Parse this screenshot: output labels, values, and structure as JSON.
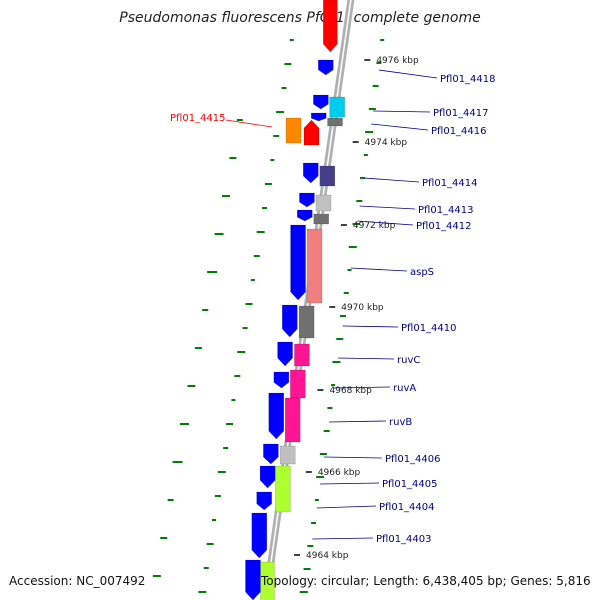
{
  "title": "Pseudomonas fluorescens PfO-1, complete genome",
  "footer": {
    "accession": "Accession: NC_007492",
    "topology": "Topology: circular; Length: 6,438,405 bp; Genes: 5,816"
  },
  "colors": {
    "backbone": "#a0a0a0",
    "forward_gene": "#0000ff",
    "label_text": "#00008b",
    "highlight_label": "#ff0000",
    "gc_marks": "#008000",
    "tick_marks": "#000000"
  },
  "scale_ticks": [
    "4976 kbp",
    "4974 kbp",
    "4972 kbp",
    "4970 kbp",
    "4968 kbp",
    "4966 kbp",
    "4964 kbp"
  ],
  "genes": [
    {
      "label": "Pfl01_4418",
      "color": "#0000ff"
    },
    {
      "label": "Pfl01_4417",
      "color": "#00ccee"
    },
    {
      "label": "Pfl01_4416",
      "color": "#707070"
    },
    {
      "label": "Pfl01_4415",
      "color": "#ff8800",
      "highlight": true
    },
    {
      "label": "Pfl01_4414",
      "color": "#483d8b"
    },
    {
      "label": "Pfl01_4413",
      "color": "#c0c0c0"
    },
    {
      "label": "Pfl01_4412",
      "color": "#707070"
    },
    {
      "label": "aspS",
      "color": "#f08080"
    },
    {
      "label": "Pfl01_4410",
      "color": "#707070"
    },
    {
      "label": "ruvC",
      "color": "#ff1493"
    },
    {
      "label": "ruvA",
      "color": "#ff1493"
    },
    {
      "label": "ruvB",
      "color": "#ff1493"
    },
    {
      "label": "Pfl01_4406",
      "color": "#c0c0c0"
    },
    {
      "label": "Pfl01_4405",
      "color": "#adff2f"
    },
    {
      "label": "Pfl01_4404",
      "color": "#0000ff"
    },
    {
      "label": "Pfl01_4403",
      "color": "#0000ff"
    }
  ]
}
